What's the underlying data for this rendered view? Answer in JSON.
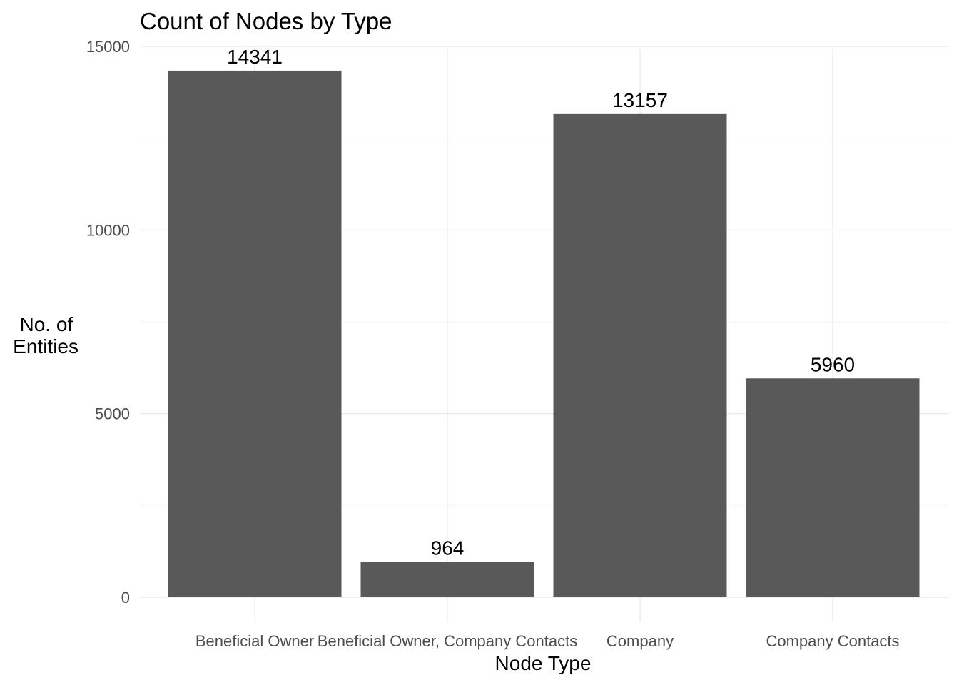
{
  "chart_data": {
    "type": "bar",
    "title": "Count of Nodes by Type",
    "xlabel": "Node Type",
    "ylabel_lines": [
      "No. of",
      "Entities"
    ],
    "categories": [
      "Beneficial Owner",
      "Beneficial Owner, Company Contacts",
      "Company",
      "Company Contacts"
    ],
    "values": [
      14341,
      964,
      13157,
      5960
    ],
    "data_labels": [
      "14341",
      "964",
      "13157",
      "5960"
    ],
    "ylim": [
      0,
      15000
    ],
    "y_ticks": [
      0,
      5000,
      10000,
      15000
    ],
    "y_tick_labels": [
      "0",
      "5000",
      "10000",
      "15000"
    ],
    "grid": true,
    "legend": "none",
    "bar_color": "#595959"
  }
}
